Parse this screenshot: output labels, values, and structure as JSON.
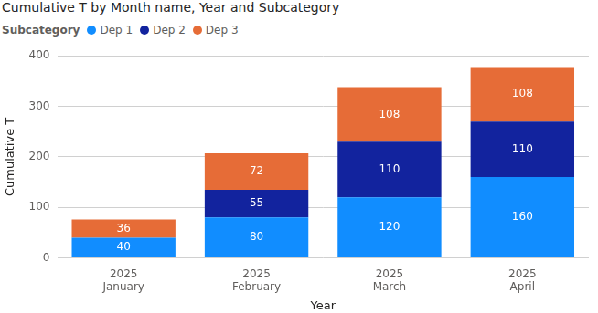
{
  "chart_data": {
    "type": "bar",
    "title": "Cumulative T by Month name, Year and Subcategory",
    "legend_title": "Subcategory",
    "x_label": "Year",
    "y_label": "Cumulative T",
    "categories": [
      [
        "2025",
        "January"
      ],
      [
        "2025",
        "February"
      ],
      [
        "2025",
        "March"
      ],
      [
        "2025",
        "April"
      ]
    ],
    "series": [
      {
        "name": "Dep 1",
        "color": "#118DFF",
        "values": [
          40,
          80,
          120,
          160
        ]
      },
      {
        "name": "Dep 2",
        "color": "#12239E",
        "values": [
          null,
          55,
          110,
          110
        ]
      },
      {
        "name": "Dep 3",
        "color": "#E66C37",
        "values": [
          36,
          72,
          108,
          108
        ]
      }
    ],
    "ylim": [
      0,
      400
    ],
    "yticks": [
      0,
      100,
      200,
      300,
      400
    ],
    "stacked": true,
    "data_labels": true,
    "grid": true,
    "legend": "top-left"
  }
}
